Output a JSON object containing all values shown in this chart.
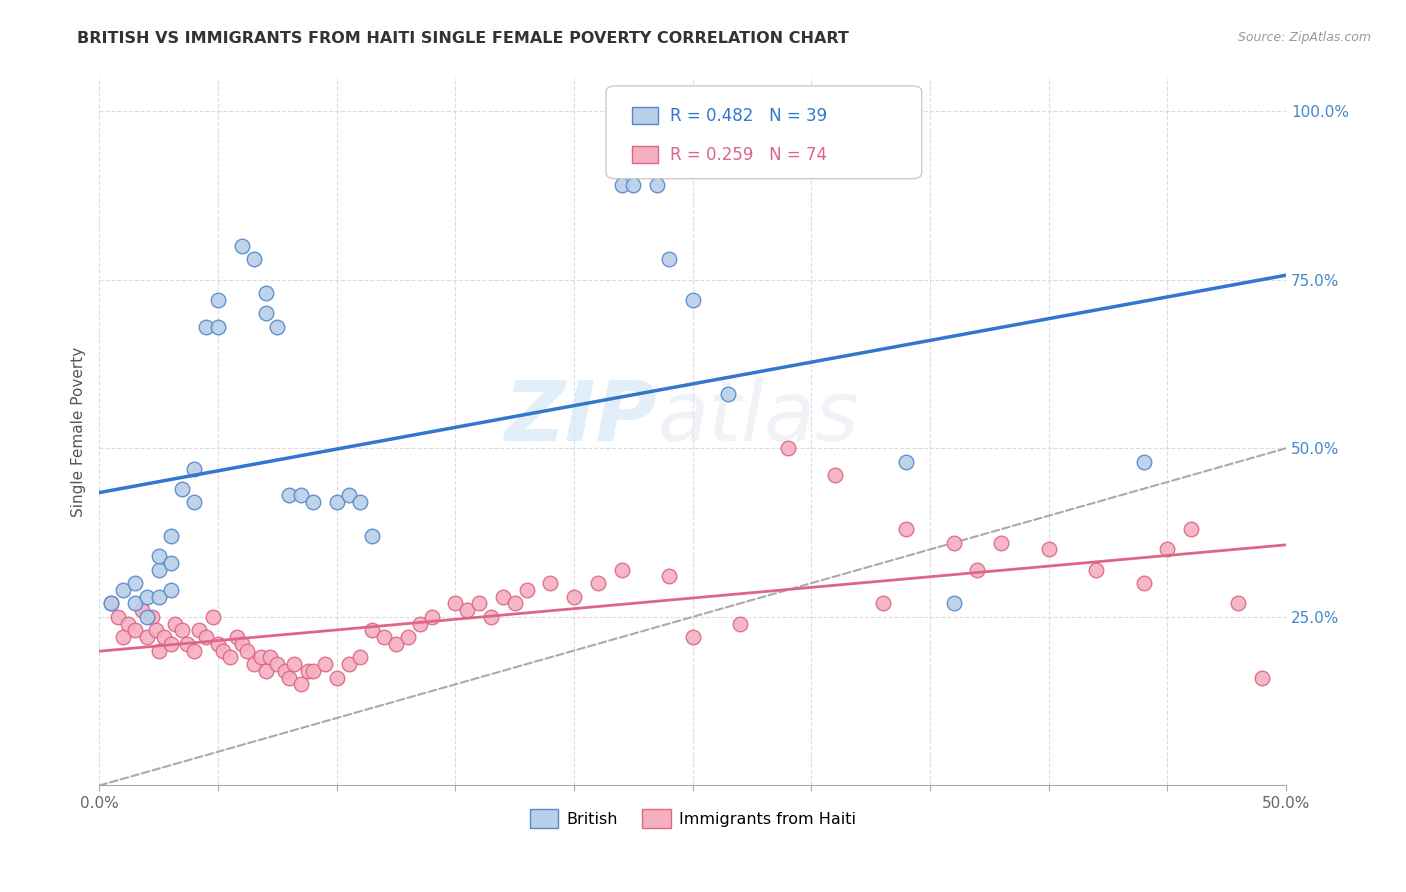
{
  "title": "BRITISH VS IMMIGRANTS FROM HAITI SINGLE FEMALE POVERTY CORRELATION CHART",
  "source": "Source: ZipAtlas.com",
  "ylabel": "Single Female Poverty",
  "xlim": [
    0.0,
    0.5
  ],
  "ylim": [
    0.0,
    1.05
  ],
  "xtick_labels_ends": [
    "0.0%",
    "50.0%"
  ],
  "xtick_vals": [
    0.0,
    0.05,
    0.1,
    0.15,
    0.2,
    0.25,
    0.3,
    0.35,
    0.4,
    0.45,
    0.5
  ],
  "ytick_labels": [
    "25.0%",
    "50.0%",
    "75.0%",
    "100.0%"
  ],
  "ytick_vals": [
    0.25,
    0.5,
    0.75,
    1.0
  ],
  "british_color": "#b8d0e8",
  "haiti_color": "#f5b0c0",
  "british_edge": "#5588cc",
  "haiti_edge": "#dd6688",
  "trend_british_color": "#3377cc",
  "trend_haiti_color": "#dd6688",
  "diag_color": "#aaaaaa",
  "R_british": 0.482,
  "N_british": 39,
  "R_haiti": 0.259,
  "N_haiti": 74,
  "legend_british_label": "British",
  "legend_haiti_label": "Immigrants from Haiti",
  "watermark_zip": "ZIP",
  "watermark_atlas": "atlas",
  "british_x": [
    0.005,
    0.01,
    0.015,
    0.015,
    0.02,
    0.02,
    0.025,
    0.025,
    0.025,
    0.03,
    0.03,
    0.03,
    0.035,
    0.04,
    0.04,
    0.045,
    0.05,
    0.05,
    0.06,
    0.065,
    0.07,
    0.07,
    0.075,
    0.08,
    0.085,
    0.09,
    0.1,
    0.105,
    0.11,
    0.115,
    0.22,
    0.225,
    0.235,
    0.24,
    0.25,
    0.265,
    0.34,
    0.36,
    0.44
  ],
  "british_y": [
    0.27,
    0.29,
    0.27,
    0.3,
    0.25,
    0.28,
    0.28,
    0.32,
    0.34,
    0.29,
    0.33,
    0.37,
    0.44,
    0.42,
    0.47,
    0.68,
    0.72,
    0.68,
    0.8,
    0.78,
    0.73,
    0.7,
    0.68,
    0.43,
    0.43,
    0.42,
    0.42,
    0.43,
    0.42,
    0.37,
    0.89,
    0.89,
    0.89,
    0.78,
    0.72,
    0.58,
    0.48,
    0.27,
    0.48
  ],
  "haiti_x": [
    0.005,
    0.008,
    0.01,
    0.012,
    0.015,
    0.018,
    0.02,
    0.022,
    0.024,
    0.025,
    0.027,
    0.03,
    0.032,
    0.035,
    0.037,
    0.04,
    0.042,
    0.045,
    0.048,
    0.05,
    0.052,
    0.055,
    0.058,
    0.06,
    0.062,
    0.065,
    0.068,
    0.07,
    0.072,
    0.075,
    0.078,
    0.08,
    0.082,
    0.085,
    0.088,
    0.09,
    0.095,
    0.1,
    0.105,
    0.11,
    0.115,
    0.12,
    0.125,
    0.13,
    0.135,
    0.14,
    0.15,
    0.155,
    0.16,
    0.165,
    0.17,
    0.175,
    0.18,
    0.19,
    0.2,
    0.21,
    0.22,
    0.24,
    0.25,
    0.27,
    0.29,
    0.31,
    0.33,
    0.34,
    0.36,
    0.37,
    0.38,
    0.4,
    0.42,
    0.44,
    0.45,
    0.46,
    0.48,
    0.49
  ],
  "haiti_y": [
    0.27,
    0.25,
    0.22,
    0.24,
    0.23,
    0.26,
    0.22,
    0.25,
    0.23,
    0.2,
    0.22,
    0.21,
    0.24,
    0.23,
    0.21,
    0.2,
    0.23,
    0.22,
    0.25,
    0.21,
    0.2,
    0.19,
    0.22,
    0.21,
    0.2,
    0.18,
    0.19,
    0.17,
    0.19,
    0.18,
    0.17,
    0.16,
    0.18,
    0.15,
    0.17,
    0.17,
    0.18,
    0.16,
    0.18,
    0.19,
    0.23,
    0.22,
    0.21,
    0.22,
    0.24,
    0.25,
    0.27,
    0.26,
    0.27,
    0.25,
    0.28,
    0.27,
    0.29,
    0.3,
    0.28,
    0.3,
    0.32,
    0.31,
    0.22,
    0.24,
    0.5,
    0.46,
    0.27,
    0.38,
    0.36,
    0.32,
    0.36,
    0.35,
    0.32,
    0.3,
    0.35,
    0.38,
    0.27,
    0.16
  ]
}
